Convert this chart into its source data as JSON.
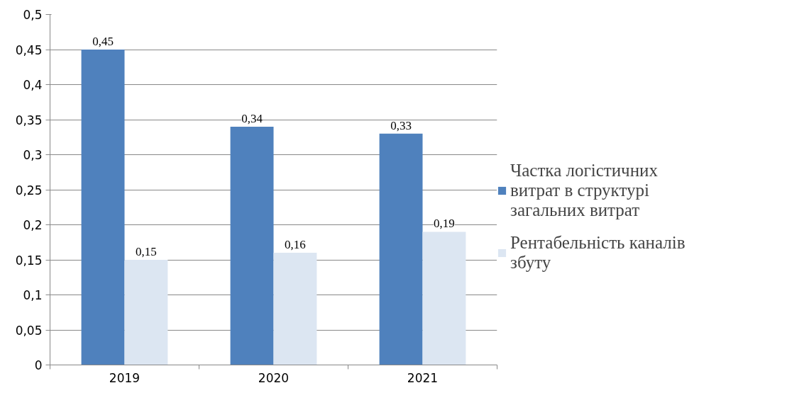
{
  "chart_data": {
    "type": "bar",
    "categories": [
      "2019",
      "2020",
      "2021"
    ],
    "series": [
      {
        "name": "Частка логістичних витрат в структурі загальних витрат",
        "color": "#4f81bd",
        "values": [
          0.45,
          0.34,
          0.33
        ]
      },
      {
        "name": "Рентабельність каналів збуту",
        "color": "#dce6f2",
        "values": [
          0.15,
          0.16,
          0.19
        ]
      }
    ],
    "ylim": [
      0,
      0.5
    ],
    "yticks": [
      0,
      {
        "value": 0.05,
        "label": "0,05"
      },
      {
        "value": 0.1,
        "label": "0,1"
      },
      {
        "value": 0.15,
        "label": "0,15"
      },
      {
        "value": 0.2,
        "label": "0,2"
      },
      {
        "value": 0.25,
        "label": "0,25"
      },
      {
        "value": 0.3,
        "label": "0,3"
      },
      {
        "value": 0.35,
        "label": "0,35"
      },
      {
        "value": 0.4,
        "label": "0,4"
      },
      {
        "value": 0.45,
        "label": "0,45"
      },
      {
        "value": 0.5,
        "label": "0,5"
      }
    ],
    "value_labels": [
      [
        "0,45",
        "0,34",
        "0,33"
      ],
      [
        "0,15",
        "0,16",
        "0,19"
      ]
    ],
    "grid": "y",
    "legend": "right"
  }
}
